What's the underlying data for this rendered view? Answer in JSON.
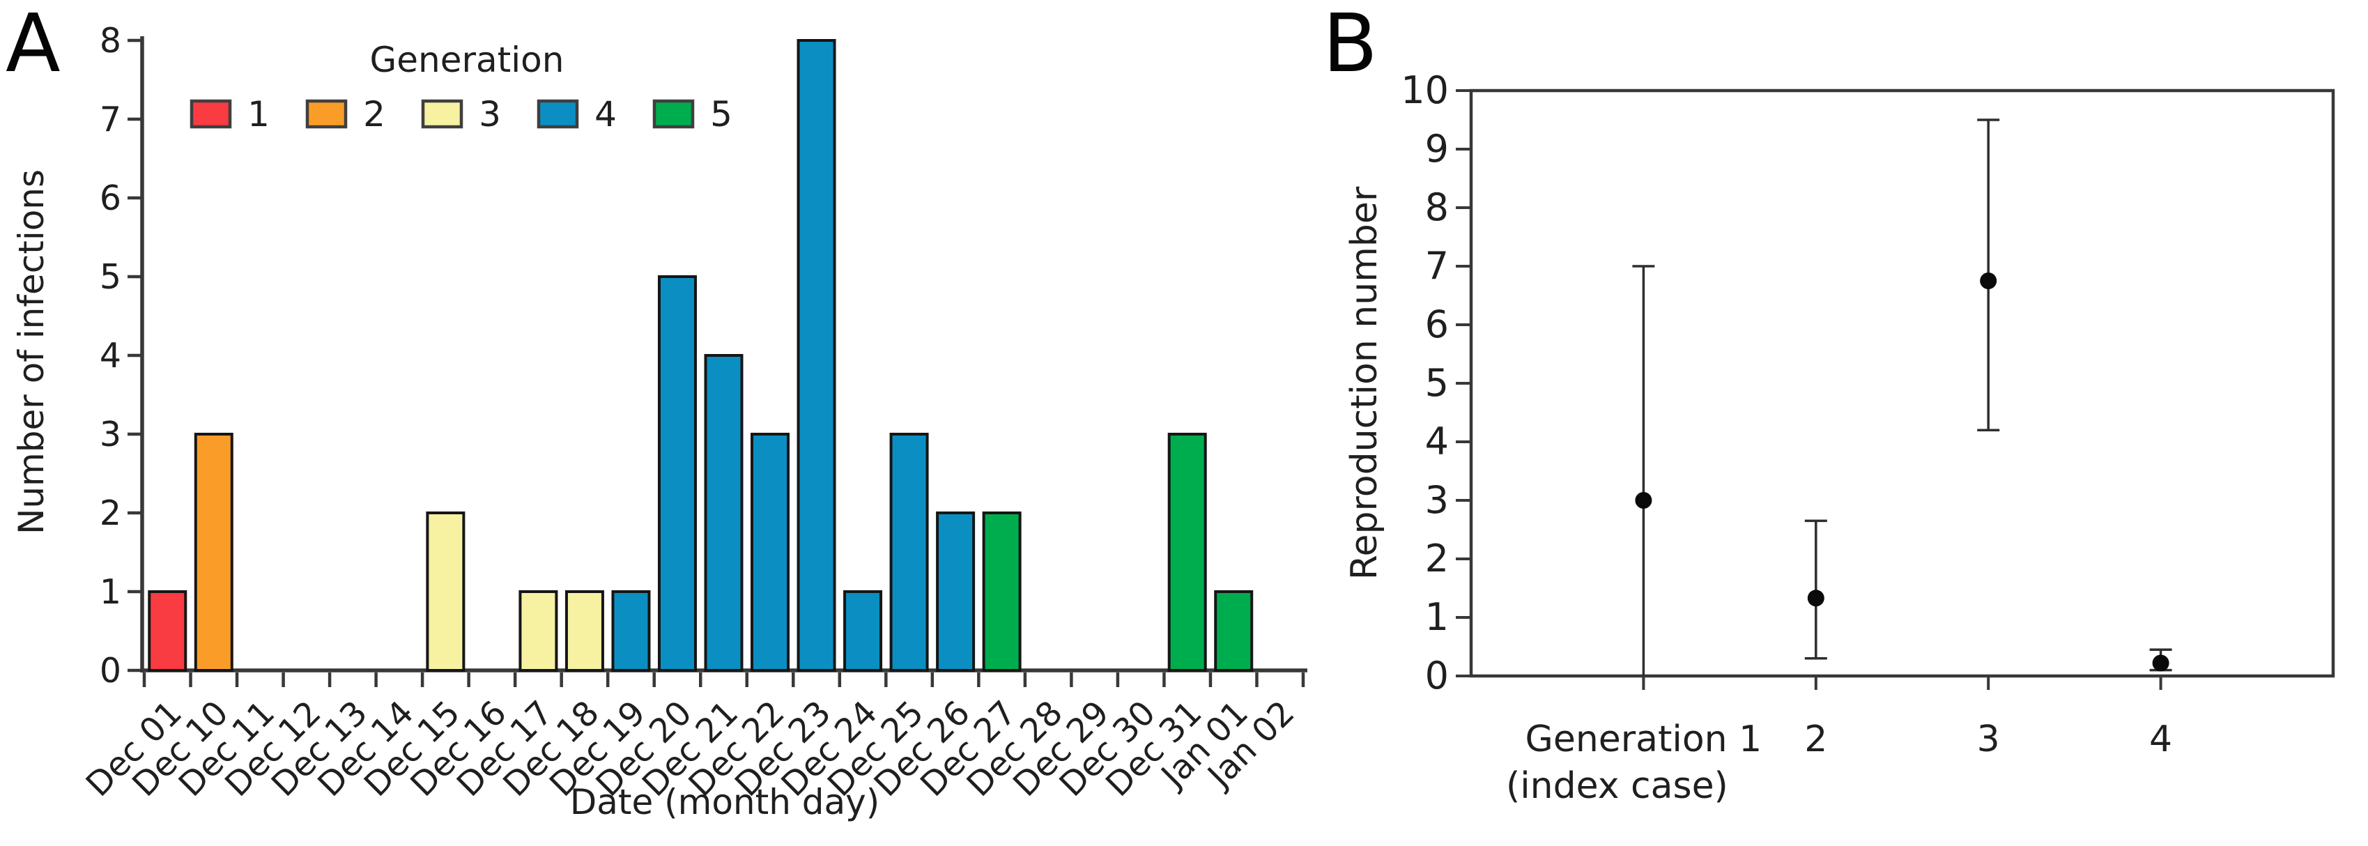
{
  "figure": {
    "background": "#ffffff",
    "text_color": "#1f1f1f",
    "axis_color": "#383838"
  },
  "chart_data": [
    {
      "type": "bar",
      "panel_label": "A",
      "title": "",
      "xlabel": "Date (month day)",
      "ylabel": "Number of infections",
      "ylim": [
        0,
        8
      ],
      "yticks": [
        0,
        1,
        2,
        3,
        4,
        5,
        6,
        7,
        8
      ],
      "grid": false,
      "legend_position": "top-left-inside",
      "legend_title": "Generation",
      "legend": [
        {
          "label": "1",
          "color": "#f93b42"
        },
        {
          "label": "2",
          "color": "#fa9d28"
        },
        {
          "label": "3",
          "color": "#f6f2a2"
        },
        {
          "label": "4",
          "color": "#0b8fc2"
        },
        {
          "label": "5",
          "color": "#00ad4e"
        }
      ],
      "categories": [
        "Dec 01",
        "Dec 10",
        "Dec 11",
        "Dec 12",
        "Dec 13",
        "Dec 14",
        "Dec 15",
        "Dec 16",
        "Dec 17",
        "Dec 18",
        "Dec 19",
        "Dec 20",
        "Dec 21",
        "Dec 22",
        "Dec 23",
        "Dec 24",
        "Dec 25",
        "Dec 26",
        "Dec 27",
        "Dec 28",
        "Dec 29",
        "Dec 30",
        "Dec 31",
        "Jan 01",
        "Jan 02"
      ],
      "values": [
        1,
        3,
        0,
        0,
        0,
        0,
        2,
        0,
        1,
        1,
        1,
        5,
        4,
        3,
        8,
        1,
        3,
        2,
        2,
        0,
        0,
        0,
        3,
        1,
        0
      ],
      "generation_by_category": [
        1,
        2,
        null,
        null,
        null,
        null,
        3,
        null,
        3,
        3,
        4,
        4,
        4,
        4,
        4,
        4,
        4,
        4,
        5,
        null,
        null,
        null,
        5,
        5,
        null
      ]
    },
    {
      "type": "scatter",
      "panel_label": "B",
      "title": "",
      "xlabel": "",
      "ylabel": "Reproduction number",
      "ylim": [
        0,
        10
      ],
      "yticks": [
        0,
        1,
        2,
        3,
        4,
        5,
        6,
        7,
        8,
        9,
        10
      ],
      "grid": false,
      "point_color": "#0a0a0a",
      "error_bar_color": "#2e2e2e",
      "points": [
        {
          "label": "Generation 1",
          "label_line2": "(index case)",
          "value": 3.0,
          "ci_low": 0.0,
          "ci_high": 7.0
        },
        {
          "label": "2",
          "label_line2": "",
          "value": 1.33,
          "ci_low": 0.3,
          "ci_high": 2.65
        },
        {
          "label": "3",
          "label_line2": "",
          "value": 6.75,
          "ci_low": 4.2,
          "ci_high": 9.5
        },
        {
          "label": "4",
          "label_line2": "",
          "value": 0.22,
          "ci_low": 0.1,
          "ci_high": 0.45
        }
      ]
    }
  ]
}
